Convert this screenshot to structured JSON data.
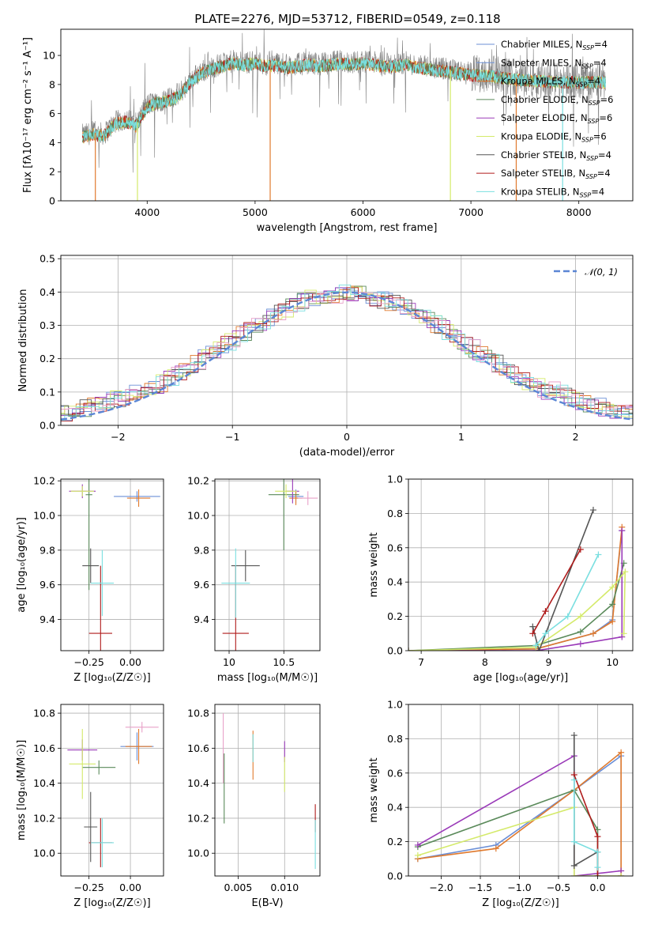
{
  "figure": {
    "title": "PLATE=2276, MJD=53712, FIBERID=0549, z=0.118"
  },
  "colors": {
    "Chabrier MILES": "#6b8fd6",
    "Salpeter MILES": "#6b8fd6",
    "Kroupa MILES": "#e07a2e",
    "Chabrier ELODIE": "#5a8a5a",
    "Salpeter ELODIE": "#9a3ab8",
    "Kroupa ELODIE": "#d4ea6a",
    "Chabrier STELIB": "#555555",
    "Salpeter STELIB": "#b01c1c",
    "Kroupa STELIB": "#7adfe0",
    "model_alt": "#e8a0c8",
    "data": "#808080"
  },
  "chart_data": [
    {
      "id": "spectrum",
      "type": "line",
      "xlabel": "wavelength [Angstrom, rest frame]",
      "ylabel": "Flux [fλ10⁻¹⁷ erg cm⁻² s⁻¹ A⁻¹]",
      "xlim": [
        3200,
        8500
      ],
      "ylim": [
        0,
        11.8
      ],
      "xticks": [
        4000,
        5000,
        6000,
        7000,
        8000
      ],
      "yticks": [
        0,
        2,
        4,
        6,
        8,
        10
      ],
      "grid": false,
      "legend_position": "right",
      "series": [
        {
          "name": "Chabrier MILES",
          "label_main": "Chabrier MILES, N",
          "label_sub": "SSP",
          "label_tail": "=4"
        },
        {
          "name": "Salpeter MILES",
          "label_main": "Salpeter MILES, N",
          "label_sub": "SSP",
          "label_tail": "=4"
        },
        {
          "name": "Kroupa MILES",
          "label_main": "Kroupa MILES, N",
          "label_sub": "SSP",
          "label_tail": "=4"
        },
        {
          "name": "Chabrier ELODIE",
          "label_main": "Chabrier ELODIE, N",
          "label_sub": "SSP",
          "label_tail": "=6"
        },
        {
          "name": "Salpeter ELODIE",
          "label_main": "Salpeter ELODIE, N",
          "label_sub": "SSP",
          "label_tail": "=6"
        },
        {
          "name": "Kroupa ELODIE",
          "label_main": "Kroupa ELODIE, N",
          "label_sub": "SSP",
          "label_tail": "=6"
        },
        {
          "name": "Chabrier STELIB",
          "label_main": "Chabrier STELIB, N",
          "label_sub": "SSP",
          "label_tail": "=4"
        },
        {
          "name": "Salpeter STELIB",
          "label_main": "Salpeter STELIB, N",
          "label_sub": "SSP",
          "label_tail": "=4"
        },
        {
          "name": "Kroupa STELIB",
          "label_main": "Kroupa STELIB, N",
          "label_sub": "SSP",
          "label_tail": "=4"
        }
      ],
      "continuum": [
        [
          3400,
          4.5
        ],
        [
          3500,
          4.7
        ],
        [
          3600,
          4.6
        ],
        [
          3700,
          5.4
        ],
        [
          3800,
          5.6
        ],
        [
          3900,
          5.3
        ],
        [
          4000,
          6.6
        ],
        [
          4100,
          6.9
        ],
        [
          4200,
          7.0
        ],
        [
          4300,
          7.4
        ],
        [
          4400,
          8.3
        ],
        [
          4500,
          8.9
        ],
        [
          4600,
          9.2
        ],
        [
          4700,
          9.4
        ],
        [
          4800,
          9.6
        ],
        [
          4900,
          9.5
        ],
        [
          5000,
          9.6
        ],
        [
          5100,
          9.4
        ],
        [
          5200,
          9.5
        ],
        [
          5300,
          9.3
        ],
        [
          5400,
          9.4
        ],
        [
          5500,
          9.5
        ],
        [
          5600,
          9.4
        ],
        [
          5700,
          9.5
        ],
        [
          5800,
          9.6
        ],
        [
          5900,
          9.5
        ],
        [
          6000,
          9.6
        ],
        [
          6100,
          9.5
        ],
        [
          6200,
          9.4
        ],
        [
          6300,
          9.4
        ],
        [
          6400,
          9.5
        ],
        [
          6500,
          9.3
        ],
        [
          6600,
          9.2
        ],
        [
          6700,
          9.1
        ],
        [
          6800,
          9.0
        ],
        [
          6900,
          8.9
        ],
        [
          7000,
          8.8
        ],
        [
          7200,
          8.7
        ],
        [
          7400,
          8.5
        ],
        [
          7600,
          8.4
        ],
        [
          7800,
          8.3
        ],
        [
          8000,
          8.3
        ],
        [
          8200,
          8.3
        ]
      ]
    },
    {
      "id": "residuals",
      "type": "line",
      "xlabel": "(data-model)/error",
      "ylabel": "Normed distribution",
      "xlim": [
        -2.5,
        2.5
      ],
      "ylim": [
        0,
        0.51
      ],
      "xticks": [
        -2,
        -1,
        0,
        1,
        2
      ],
      "yticks": [
        0.0,
        0.1,
        0.2,
        0.3,
        0.4,
        0.5
      ],
      "grid": true,
      "legend_position": "top-right",
      "reference_label": "𝒩(0, 1)",
      "reference": {
        "mean": 0,
        "sigma": 1
      }
    },
    {
      "id": "age-vs-Z",
      "type": "scatter",
      "xlabel": "Z [log₁₀(Z/Z☉)]",
      "ylabel": "age  [log₁₀(age/yr)]",
      "xlim": [
        -0.42,
        0.2
      ],
      "ylim": [
        9.22,
        10.21
      ],
      "xticks": [
        -0.25,
        0.0
      ],
      "xticklabels": [
        "−0.25",
        "0.00"
      ],
      "yticks": [
        9.4,
        9.6,
        9.8,
        10.0,
        10.2
      ],
      "grid": true,
      "points": [
        {
          "series": "Chabrier MILES",
          "x": 0.04,
          "y": 10.11,
          "xerr": 0.14,
          "yerr": 0.03
        },
        {
          "series": "Kroupa MILES",
          "x": 0.05,
          "y": 10.1,
          "xerr": 0.07,
          "yerr": 0.05
        },
        {
          "series": "Chabrier ELODIE",
          "x": -0.25,
          "y": 10.12,
          "xerr": 0.02,
          "yerr": 0.55
        },
        {
          "series": "Salpeter ELODIE",
          "x": -0.29,
          "y": 10.14,
          "xerr": 0.08,
          "yerr": 0.04
        },
        {
          "series": "Kroupa ELODIE",
          "x": -0.29,
          "y": 10.14,
          "xerr": 0.07,
          "yerr": 0.03
        },
        {
          "series": "Chabrier STELIB",
          "x": -0.24,
          "y": 9.71,
          "xerr": 0.05,
          "yerr": 0.1
        },
        {
          "series": "Salpeter STELIB",
          "x": -0.18,
          "y": 9.32,
          "xerr": 0.07,
          "yerr": 0.39
        },
        {
          "series": "Kroupa STELIB",
          "x": -0.17,
          "y": 9.61,
          "xerr": 0.07,
          "yerr": 0.19
        }
      ]
    },
    {
      "id": "age-vs-mass",
      "type": "scatter",
      "xlabel": "mass [log₁₀(M/M☉)]",
      "ylabel": "",
      "xlim": [
        9.87,
        10.83
      ],
      "ylim": [
        9.22,
        10.21
      ],
      "xticks": [
        10.0,
        10.5
      ],
      "yticks": [
        9.4,
        9.6,
        9.8,
        10.0,
        10.2
      ],
      "grid": true,
      "points": [
        {
          "series": "Chabrier MILES",
          "x": 10.61,
          "y": 10.11,
          "xerr": 0.07,
          "yerr": 0.04
        },
        {
          "series": "Kroupa MILES",
          "x": 10.61,
          "y": 10.1,
          "xerr": 0.06,
          "yerr": 0.04
        },
        {
          "series": "Chabrier ELODIE",
          "x": 10.5,
          "y": 10.12,
          "xerr": 0.14,
          "yerr": 0.32
        },
        {
          "series": "Salpeter ELODIE",
          "x": 10.58,
          "y": 10.14,
          "xerr": 0.06,
          "yerr": 0.07
        },
        {
          "series": "Kroupa ELODIE",
          "x": 10.52,
          "y": 10.14,
          "xerr": 0.1,
          "yerr": 0.04
        },
        {
          "series": "Chabrier STELIB",
          "x": 10.15,
          "y": 9.71,
          "xerr": 0.13,
          "yerr": 0.09
        },
        {
          "series": "Salpeter STELIB",
          "x": 10.06,
          "y": 9.32,
          "xerr": 0.12,
          "yerr": 0.39
        },
        {
          "series": "Kroupa STELIB",
          "x": 10.06,
          "y": 9.61,
          "xerr": 0.13,
          "yerr": 0.2
        },
        {
          "series": "model_alt",
          "x": 10.72,
          "y": 10.1,
          "xerr": 0.09,
          "yerr": 0.04
        }
      ]
    },
    {
      "id": "massweight-vs-age",
      "type": "line",
      "xlabel": "age  [log₁₀(age/yr)]",
      "ylabel": "mass weight",
      "xlim": [
        6.8,
        10.32
      ],
      "ylim": [
        0,
        1.0
      ],
      "xticks": [
        7,
        8,
        9,
        10
      ],
      "yticks": [
        0.0,
        0.2,
        0.4,
        0.6,
        0.8,
        1.0
      ],
      "grid": true,
      "series": [
        {
          "name": "Chabrier MILES",
          "points": [
            [
              6.8,
              0.0
            ],
            [
              8.8,
              0.01
            ],
            [
              9.7,
              0.1
            ],
            [
              10.0,
              0.18
            ],
            [
              10.15,
              0.7
            ]
          ]
        },
        {
          "name": "Kroupa MILES",
          "points": [
            [
              6.8,
              0.0
            ],
            [
              8.8,
              0.01
            ],
            [
              9.7,
              0.1
            ],
            [
              10.0,
              0.17
            ],
            [
              10.15,
              0.72
            ]
          ]
        },
        {
          "name": "Chabrier ELODIE",
          "points": [
            [
              6.8,
              0.0
            ],
            [
              8.8,
              0.03
            ],
            [
              9.5,
              0.11
            ],
            [
              10.0,
              0.27
            ],
            [
              10.18,
              0.51
            ]
          ]
        },
        {
          "name": "Salpeter ELODIE",
          "points": [
            [
              6.8,
              0.0
            ],
            [
              8.8,
              0.0
            ],
            [
              9.5,
              0.04
            ],
            [
              10.15,
              0.08
            ],
            [
              10.15,
              0.7
            ]
          ]
        },
        {
          "name": "Kroupa ELODIE",
          "points": [
            [
              6.8,
              0.0
            ],
            [
              8.8,
              0.02
            ],
            [
              9.5,
              0.2
            ],
            [
              10.0,
              0.37
            ],
            [
              10.2,
              0.46
            ],
            [
              10.18,
              0.1
            ]
          ]
        },
        {
          "name": "Chabrier STELIB",
          "points": [
            [
              8.75,
              0.14
            ],
            [
              8.85,
              0.0
            ],
            [
              9.7,
              0.82
            ]
          ]
        },
        {
          "name": "Salpeter STELIB",
          "points": [
            [
              8.75,
              0.1
            ],
            [
              8.95,
              0.23
            ],
            [
              9.5,
              0.59
            ]
          ]
        },
        {
          "name": "Kroupa STELIB",
          "points": [
            [
              8.8,
              0.03
            ],
            [
              8.95,
              0.1
            ],
            [
              9.3,
              0.2
            ],
            [
              9.78,
              0.56
            ]
          ]
        }
      ]
    },
    {
      "id": "mass-vs-Z",
      "type": "scatter",
      "xlabel": "Z [log₁₀(Z/Z☉)]",
      "ylabel": "mass [log₁₀(M/M☉)]",
      "xlim": [
        -0.42,
        0.2
      ],
      "ylim": [
        9.87,
        10.85
      ],
      "xticks": [
        -0.25,
        0.0
      ],
      "xticklabels": [
        "−0.25",
        "0.00"
      ],
      "yticks": [
        10.0,
        10.2,
        10.4,
        10.6,
        10.8
      ],
      "grid": true,
      "points": [
        {
          "series": "Chabrier MILES",
          "x": 0.04,
          "y": 10.61,
          "xerr": 0.1,
          "yerr": 0.08
        },
        {
          "series": "Kroupa MILES",
          "x": 0.05,
          "y": 10.61,
          "xerr": 0.08,
          "yerr": 0.1
        },
        {
          "series": "model_alt",
          "x": 0.07,
          "y": 10.72,
          "xerr": 0.1,
          "yerr": 0.03
        },
        {
          "series": "Chabrier ELODIE",
          "x": -0.19,
          "y": 10.49,
          "xerr": 0.1,
          "yerr": 0.04
        },
        {
          "series": "Salpeter ELODIE",
          "x": -0.29,
          "y": 10.59,
          "xerr": 0.09,
          "yerr": 0.06
        },
        {
          "series": "Kroupa ELODIE",
          "x": -0.29,
          "y": 10.51,
          "xerr": 0.08,
          "yerr": 0.2
        },
        {
          "series": "Chabrier STELIB",
          "x": -0.24,
          "y": 10.15,
          "xerr": 0.04,
          "yerr": 0.2
        },
        {
          "series": "Salpeter STELIB",
          "x": -0.18,
          "y": 10.06,
          "xerr": 0.07,
          "yerr": 0.14
        },
        {
          "series": "Kroupa STELIB",
          "x": -0.17,
          "y": 10.06,
          "xerr": 0.07,
          "yerr": 0.14
        }
      ]
    },
    {
      "id": "mass-vs-ebv",
      "type": "scatter",
      "xlabel": "E(B-V)",
      "ylabel": "",
      "xlim": [
        0.0025,
        0.0138
      ],
      "ylim": [
        9.87,
        10.85
      ],
      "xticks": [
        0.005,
        0.01
      ],
      "xticklabels": [
        "0.005",
        "0.010"
      ],
      "yticks": [
        10.0,
        10.2,
        10.4,
        10.6,
        10.8
      ],
      "grid": true,
      "points": [
        {
          "series": "model_alt",
          "x": 0.0034,
          "y": 10.6,
          "yerr": 0.2
        },
        {
          "series": "Chabrier ELODIE",
          "x": 0.0035,
          "y": 10.37,
          "yerr": 0.2
        },
        {
          "series": "Kroupa MILES",
          "x": 0.0066,
          "y": 10.56,
          "yerr": 0.14
        },
        {
          "series": "Kroupa STELIB",
          "x": 0.0066,
          "y": 10.6,
          "yerr": 0.08
        },
        {
          "series": "Salpeter ELODIE",
          "x": 0.01,
          "y": 10.58,
          "yerr": 0.06
        },
        {
          "series": "Kroupa ELODIE",
          "x": 0.01,
          "y": 10.45,
          "yerr": 0.1
        },
        {
          "series": "Salpeter STELIB",
          "x": 0.0133,
          "y": 10.2,
          "yerr": 0.08
        },
        {
          "series": "Kroupa STELIB",
          "x": 0.0133,
          "y": 10.05,
          "yerr": 0.14
        }
      ]
    },
    {
      "id": "massweight-vs-Z",
      "type": "line",
      "xlabel": "Z [log₁₀(Z/Z☉)]",
      "ylabel": "mass weight",
      "xlim": [
        -2.42,
        0.45
      ],
      "ylim": [
        0,
        1.0
      ],
      "xticks": [
        -2.0,
        -1.5,
        -1.0,
        -0.5,
        0.0
      ],
      "xticklabels": [
        "−2.0",
        "−1.5",
        "−1.0",
        "−0.5",
        "0.0"
      ],
      "yticks": [
        0.0,
        0.2,
        0.4,
        0.6,
        0.8,
        1.0
      ],
      "grid": true,
      "series": [
        {
          "name": "Chabrier MILES",
          "points": [
            [
              -2.3,
              0.1
            ],
            [
              -1.3,
              0.18
            ],
            [
              -0.3,
              0.5
            ],
            [
              0.3,
              0.7
            ],
            [
              0.3,
              0.0
            ]
          ]
        },
        {
          "name": "Kroupa MILES",
          "points": [
            [
              -2.3,
              0.1
            ],
            [
              -1.3,
              0.16
            ],
            [
              -0.3,
              0.5
            ],
            [
              0.3,
              0.72
            ],
            [
              0.3,
              0.0
            ]
          ]
        },
        {
          "name": "Chabrier ELODIE",
          "points": [
            [
              -2.3,
              0.17
            ],
            [
              -0.3,
              0.5
            ],
            [
              0.0,
              0.27
            ],
            [
              0.0,
              0.0
            ]
          ]
        },
        {
          "name": "Salpeter ELODIE",
          "points": [
            [
              -2.3,
              0.18
            ],
            [
              -0.3,
              0.7
            ],
            [
              -0.3,
              0.0
            ],
            [
              0.3,
              0.03
            ]
          ]
        },
        {
          "name": "Kroupa ELODIE",
          "points": [
            [
              -2.3,
              0.12
            ],
            [
              -0.3,
              0.4
            ],
            [
              -0.3,
              0.0
            ],
            [
              0.0,
              0.0
            ],
            [
              0.3,
              0.0
            ]
          ]
        },
        {
          "name": "Chabrier STELIB",
          "points": [
            [
              -0.3,
              0.82
            ],
            [
              -0.3,
              0.06
            ],
            [
              0.0,
              0.14
            ]
          ]
        },
        {
          "name": "Salpeter STELIB",
          "points": [
            [
              -0.3,
              0.59
            ],
            [
              0.0,
              0.23
            ],
            [
              0.0,
              0.0
            ]
          ]
        },
        {
          "name": "Kroupa STELIB",
          "points": [
            [
              -0.3,
              0.56
            ],
            [
              -0.3,
              0.2
            ],
            [
              0.0,
              0.14
            ],
            [
              0.0,
              0.05
            ]
          ]
        }
      ]
    }
  ]
}
